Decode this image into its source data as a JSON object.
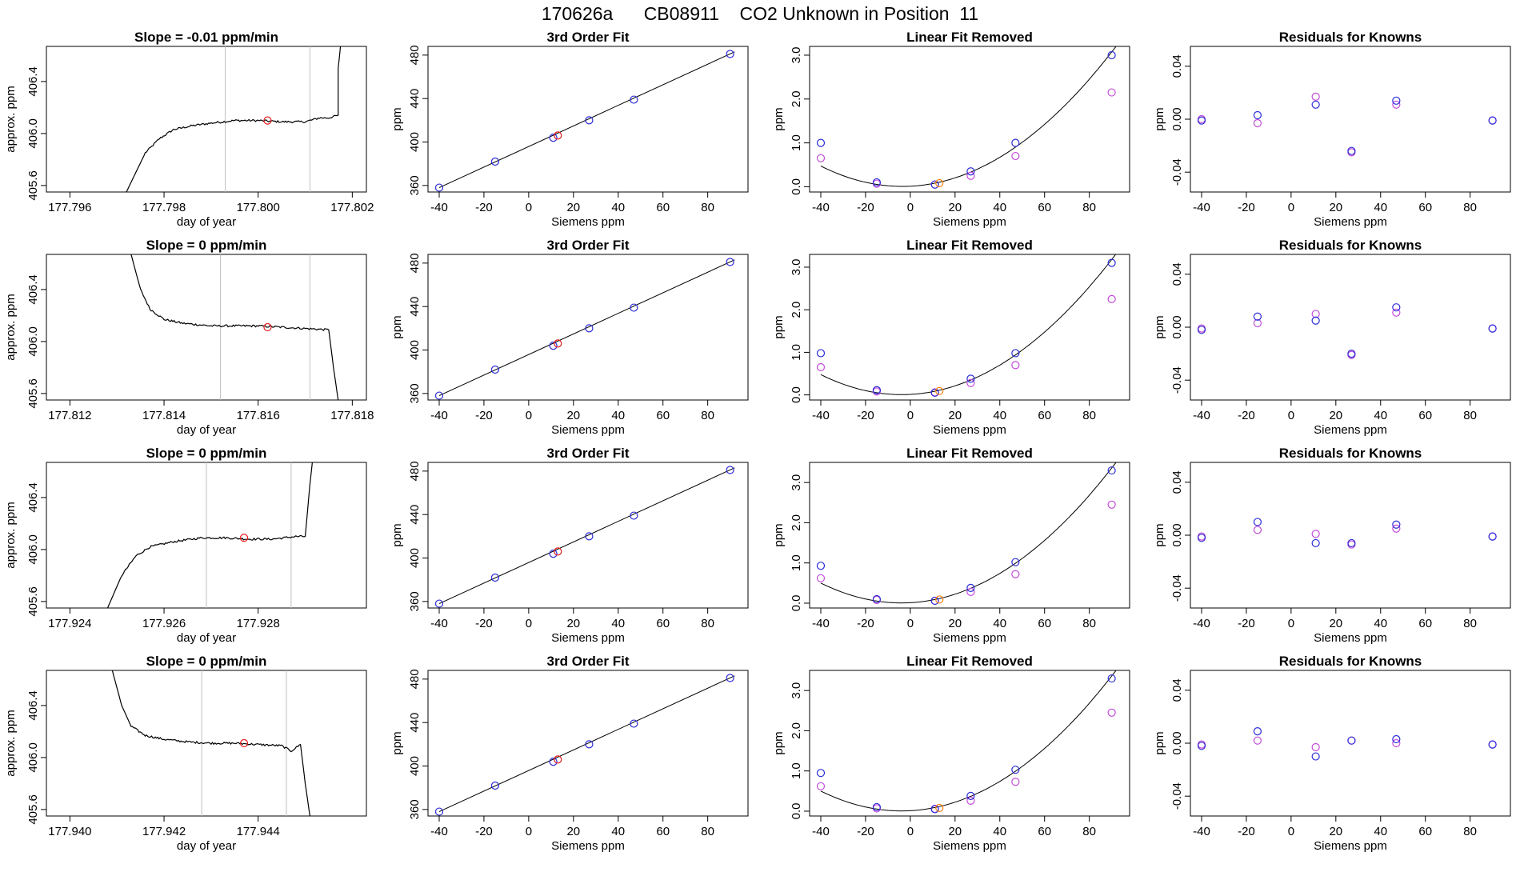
{
  "page": {
    "title": "170626a      CB08911    CO2 Unknown in Position  11"
  },
  "colors": {
    "trace": "#000000",
    "marker_red": "#e41a1c",
    "marker_blue": "#2b2bd6",
    "marker_magenta": "#c24bd8",
    "marker_orange": "#ff7f0e",
    "window_line": "#c0c0c0"
  },
  "chart_data": [
    {
      "type": "line",
      "row": 0,
      "col": 0,
      "title": "Slope =  -0.01  ppm/min",
      "xlabel": "day of year",
      "ylabel": "approx. ppm",
      "xlim": [
        177.7955,
        177.8023
      ],
      "ylim": [
        405.55,
        406.67
      ],
      "xticks": [
        177.796,
        177.798,
        177.8,
        177.802
      ],
      "xtick_labels": [
        "177.796",
        "177.798",
        "177.800",
        "177.802"
      ],
      "yticks": [
        405.6,
        406.0,
        406.4
      ],
      "ytick_labels": [
        "405.6",
        "406.0",
        "406.4"
      ],
      "window_lines": [
        177.7993,
        177.8011
      ],
      "trace": {
        "x": [
          177.7972,
          177.7976,
          177.7979,
          177.7982,
          177.7986,
          177.799,
          177.7995,
          177.8,
          177.8005,
          177.801,
          177.8013,
          177.8015,
          177.8017,
          177.8017,
          177.80175
        ],
        "y": [
          405.55,
          405.85,
          405.96,
          406.03,
          406.06,
          406.08,
          406.1,
          406.1,
          406.09,
          406.09,
          406.12,
          406.12,
          406.14,
          406.5,
          406.67
        ]
      },
      "noise": 0.008,
      "red_point": {
        "x": 177.8002,
        "y": 406.1
      }
    },
    {
      "type": "scatter",
      "row": 0,
      "col": 1,
      "title": "3rd Order Fit",
      "xlabel": "Siemens ppm",
      "ylabel": "ppm",
      "xlim": [
        -45,
        98
      ],
      "ylim": [
        354,
        488
      ],
      "xticks": [
        -40,
        -20,
        0,
        20,
        40,
        60,
        80
      ],
      "yticks": [
        360,
        400,
        440,
        480
      ],
      "fit_line": {
        "x": [
          -40,
          92
        ],
        "y": [
          358,
          483
        ]
      },
      "blue_points": {
        "x": [
          -40,
          -15,
          11,
          27,
          47,
          90
        ],
        "y": [
          358,
          382,
          404,
          420,
          439,
          481
        ]
      },
      "red_points": {
        "x": [
          13
        ],
        "y": [
          406
        ]
      }
    },
    {
      "type": "scatter",
      "row": 0,
      "col": 2,
      "title": "Linear Fit Removed",
      "xlabel": "Siemens ppm",
      "ylabel": "ppm",
      "xlim": [
        -45,
        98
      ],
      "ylim": [
        -0.12,
        3.2
      ],
      "xticks": [
        -40,
        -20,
        0,
        20,
        40,
        60,
        80
      ],
      "yticks": [
        0.0,
        1.0,
        2.0,
        3.0
      ],
      "ytick_labels": [
        "0.0",
        "1.0",
        "2.0",
        "3.0"
      ],
      "curve": {
        "a": 0.00035,
        "b": 0.0025,
        "c": 0.012
      },
      "curve_xrange": [
        -40,
        92
      ],
      "blue_points": {
        "x": [
          -40,
          -15,
          11,
          27,
          47,
          90
        ],
        "y": [
          1.0,
          0.1,
          0.05,
          0.35,
          1.0,
          3.0
        ]
      },
      "magenta_points": {
        "x": [
          -40,
          -15,
          11,
          27,
          47,
          90
        ],
        "y": [
          0.65,
          0.07,
          0.05,
          0.25,
          0.7,
          2.15
        ]
      },
      "orange_points": {
        "x": [
          13
        ],
        "y": [
          0.08
        ]
      }
    },
    {
      "type": "scatter",
      "row": 0,
      "col": 3,
      "title": "Residuals for Knowns",
      "xlabel": "Siemens ppm",
      "ylabel": "ppm",
      "xlim": [
        -45,
        98
      ],
      "ylim": [
        -0.055,
        0.055
      ],
      "xticks": [
        -40,
        -20,
        0,
        20,
        40,
        60,
        80
      ],
      "yticks": [
        -0.04,
        0.0,
        0.04
      ],
      "ytick_labels": [
        "-0.04",
        "0.00",
        "0.04"
      ],
      "blue_points": {
        "x": [
          -40,
          -15,
          11,
          27,
          47,
          90
        ],
        "y": [
          -0.001,
          0.003,
          0.011,
          -0.024,
          0.014,
          -0.001
        ]
      },
      "magenta_points": {
        "x": [
          -40,
          -15,
          11,
          27,
          47,
          90
        ],
        "y": [
          0.0,
          -0.003,
          0.017,
          -0.025,
          0.011,
          -0.001
        ]
      }
    },
    {
      "type": "line",
      "row": 1,
      "col": 0,
      "title": "Slope =  0  ppm/min",
      "xlabel": "day of year",
      "ylabel": "approx. ppm",
      "xlim": [
        177.8115,
        177.8183
      ],
      "ylim": [
        405.55,
        406.67
      ],
      "xticks": [
        177.812,
        177.814,
        177.816,
        177.818
      ],
      "xtick_labels": [
        "177.812",
        "177.814",
        "177.816",
        "177.818"
      ],
      "yticks": [
        405.6,
        406.0,
        406.4
      ],
      "ytick_labels": [
        "405.6",
        "406.0",
        "406.4"
      ],
      "window_lines": [
        177.8152,
        177.8171
      ],
      "trace": {
        "x": [
          177.8133,
          177.8135,
          177.8137,
          177.814,
          177.8144,
          177.815,
          177.8155,
          177.816,
          177.8165,
          177.817,
          177.8175,
          177.8176,
          177.8177
        ],
        "y": [
          406.67,
          406.4,
          406.25,
          406.17,
          406.14,
          406.12,
          406.12,
          406.12,
          406.11,
          406.1,
          406.09,
          405.8,
          405.55
        ]
      },
      "noise": 0.008,
      "red_point": {
        "x": 177.8162,
        "y": 406.11
      }
    },
    {
      "type": "scatter",
      "row": 1,
      "col": 1,
      "title": "3rd Order Fit",
      "xlabel": "Siemens ppm",
      "ylabel": "ppm",
      "xlim": [
        -45,
        98
      ],
      "ylim": [
        354,
        488
      ],
      "xticks": [
        -40,
        -20,
        0,
        20,
        40,
        60,
        80
      ],
      "yticks": [
        360,
        400,
        440,
        480
      ],
      "fit_line": {
        "x": [
          -40,
          92
        ],
        "y": [
          358,
          483
        ]
      },
      "blue_points": {
        "x": [
          -40,
          -15,
          11,
          27,
          47,
          90
        ],
        "y": [
          358,
          382,
          404,
          420,
          439,
          481
        ]
      },
      "red_points": {
        "x": [
          13
        ],
        "y": [
          406
        ]
      }
    },
    {
      "type": "scatter",
      "row": 1,
      "col": 2,
      "title": "Linear Fit Removed",
      "xlabel": "Siemens ppm",
      "ylabel": "ppm",
      "xlim": [
        -45,
        98
      ],
      "ylim": [
        -0.12,
        3.3
      ],
      "xticks": [
        -40,
        -20,
        0,
        20,
        40,
        60,
        80
      ],
      "yticks": [
        0.0,
        1.0,
        2.0,
        3.0
      ],
      "ytick_labels": [
        "0.0",
        "1.0",
        "2.0",
        "3.0"
      ],
      "curve": {
        "a": 0.00036,
        "b": 0.0028,
        "c": 0.012
      },
      "curve_xrange": [
        -40,
        92
      ],
      "blue_points": {
        "x": [
          -40,
          -15,
          11,
          27,
          47,
          90
        ],
        "y": [
          0.98,
          0.11,
          0.05,
          0.38,
          0.98,
          3.1
        ]
      },
      "magenta_points": {
        "x": [
          -40,
          -15,
          11,
          27,
          47,
          90
        ],
        "y": [
          0.65,
          0.08,
          0.06,
          0.28,
          0.7,
          2.25
        ]
      },
      "orange_points": {
        "x": [
          13
        ],
        "y": [
          0.09
        ]
      }
    },
    {
      "type": "scatter",
      "row": 1,
      "col": 3,
      "title": "Residuals for Knowns",
      "xlabel": "Siemens ppm",
      "ylabel": "ppm",
      "xlim": [
        -45,
        98
      ],
      "ylim": [
        -0.055,
        0.055
      ],
      "xticks": [
        -40,
        -20,
        0,
        20,
        40,
        60,
        80
      ],
      "yticks": [
        -0.04,
        0.0,
        0.04
      ],
      "ytick_labels": [
        "-0.04",
        "0.00",
        "0.04"
      ],
      "blue_points": {
        "x": [
          -40,
          -15,
          11,
          27,
          47,
          90
        ],
        "y": [
          -0.002,
          0.008,
          0.005,
          -0.02,
          0.015,
          -0.001
        ]
      },
      "magenta_points": {
        "x": [
          -40,
          -15,
          11,
          27,
          47,
          90
        ],
        "y": [
          -0.001,
          0.003,
          0.01,
          -0.021,
          0.011,
          -0.001
        ]
      }
    },
    {
      "type": "line",
      "row": 2,
      "col": 0,
      "title": "Slope =  0  ppm/min",
      "xlabel": "day of year",
      "ylabel": "approx. ppm",
      "xlim": [
        177.9235,
        177.9303
      ],
      "ylim": [
        405.55,
        406.67
      ],
      "xticks": [
        177.924,
        177.926,
        177.928
      ],
      "xtick_labels": [
        "177.924",
        "177.926",
        "177.928"
      ],
      "yticks": [
        405.6,
        406.0,
        406.4
      ],
      "ytick_labels": [
        "405.6",
        "406.0",
        "406.4"
      ],
      "window_lines": [
        177.9269,
        177.9287
      ],
      "trace": {
        "x": [
          177.9248,
          177.9251,
          177.9254,
          177.9257,
          177.9262,
          177.9268,
          177.9273,
          177.9278,
          177.9283,
          177.9288,
          177.929,
          177.9291,
          177.92915
        ],
        "y": [
          405.55,
          405.8,
          405.95,
          406.02,
          406.06,
          406.09,
          406.09,
          406.08,
          406.08,
          406.1,
          406.1,
          406.5,
          406.67
        ]
      },
      "noise": 0.008,
      "red_point": {
        "x": 177.9277,
        "y": 406.09
      }
    },
    {
      "type": "scatter",
      "row": 2,
      "col": 1,
      "title": "3rd Order Fit",
      "xlabel": "Siemens ppm",
      "ylabel": "ppm",
      "xlim": [
        -45,
        98
      ],
      "ylim": [
        354,
        488
      ],
      "xticks": [
        -40,
        -20,
        0,
        20,
        40,
        60,
        80
      ],
      "yticks": [
        360,
        400,
        440,
        480
      ],
      "fit_line": {
        "x": [
          -40,
          92
        ],
        "y": [
          358,
          483
        ]
      },
      "blue_points": {
        "x": [
          -40,
          -15,
          11,
          27,
          47,
          90
        ],
        "y": [
          358,
          382,
          404,
          420,
          439,
          481
        ]
      },
      "red_points": {
        "x": [
          13
        ],
        "y": [
          406
        ]
      }
    },
    {
      "type": "scatter",
      "row": 2,
      "col": 2,
      "title": "Linear Fit Removed",
      "xlabel": "Siemens ppm",
      "ylabel": "ppm",
      "xlim": [
        -45,
        98
      ],
      "ylim": [
        -0.12,
        3.5
      ],
      "xticks": [
        -40,
        -20,
        0,
        20,
        40,
        60,
        80
      ],
      "yticks": [
        0.0,
        1.0,
        2.0,
        3.0
      ],
      "ytick_labels": [
        "0.0",
        "1.0",
        "2.0",
        "3.0"
      ],
      "curve": {
        "a": 0.00038,
        "b": 0.003,
        "c": 0.012
      },
      "curve_xrange": [
        -40,
        92
      ],
      "blue_points": {
        "x": [
          -40,
          -15,
          11,
          27,
          47,
          90
        ],
        "y": [
          0.93,
          0.1,
          0.06,
          0.38,
          1.02,
          3.3
        ]
      },
      "magenta_points": {
        "x": [
          -40,
          -15,
          11,
          27,
          47,
          90
        ],
        "y": [
          0.62,
          0.08,
          0.06,
          0.28,
          0.72,
          2.45
        ]
      },
      "orange_points": {
        "x": [
          13
        ],
        "y": [
          0.09
        ]
      }
    },
    {
      "type": "scatter",
      "row": 2,
      "col": 3,
      "title": "Residuals for Knowns",
      "xlabel": "Siemens ppm",
      "ylabel": "ppm",
      "xlim": [
        -45,
        98
      ],
      "ylim": [
        -0.055,
        0.055
      ],
      "xticks": [
        -40,
        -20,
        0,
        20,
        40,
        60,
        80
      ],
      "yticks": [
        -0.04,
        0.0,
        0.04
      ],
      "ytick_labels": [
        "-0.04",
        "0.00",
        "0.04"
      ],
      "blue_points": {
        "x": [
          -40,
          -15,
          11,
          27,
          47,
          90
        ],
        "y": [
          -0.002,
          0.01,
          -0.006,
          -0.006,
          0.008,
          -0.001
        ]
      },
      "magenta_points": {
        "x": [
          -40,
          -15,
          11,
          27,
          47,
          90
        ],
        "y": [
          -0.001,
          0.004,
          0.001,
          -0.007,
          0.005,
          -0.001
        ]
      }
    },
    {
      "type": "line",
      "row": 3,
      "col": 0,
      "title": "Slope =  0  ppm/min",
      "xlabel": "day of year",
      "ylabel": "approx. ppm",
      "xlim": [
        177.9395,
        177.9463
      ],
      "ylim": [
        405.55,
        406.67
      ],
      "xticks": [
        177.94,
        177.942,
        177.944
      ],
      "xtick_labels": [
        "177.940",
        "177.942",
        "177.944"
      ],
      "yticks": [
        405.6,
        406.0,
        406.4
      ],
      "ytick_labels": [
        "405.6",
        "406.0",
        "406.4"
      ],
      "window_lines": [
        177.9428,
        177.9446
      ],
      "trace": {
        "x": [
          177.9409,
          177.9411,
          177.9413,
          177.9416,
          177.942,
          177.9425,
          177.943,
          177.9435,
          177.944,
          177.9445,
          177.9447,
          177.9449,
          177.945,
          177.9451
        ],
        "y": [
          406.67,
          406.4,
          406.24,
          406.17,
          406.14,
          406.12,
          406.11,
          406.11,
          406.1,
          406.09,
          406.05,
          406.1,
          405.8,
          405.55
        ]
      },
      "noise": 0.008,
      "red_point": {
        "x": 177.9437,
        "y": 406.11
      }
    },
    {
      "type": "scatter",
      "row": 3,
      "col": 1,
      "title": "3rd Order Fit",
      "xlabel": "Siemens ppm",
      "ylabel": "ppm",
      "xlim": [
        -45,
        98
      ],
      "ylim": [
        354,
        488
      ],
      "xticks": [
        -40,
        -20,
        0,
        20,
        40,
        60,
        80
      ],
      "yticks": [
        360,
        400,
        440,
        480
      ],
      "fit_line": {
        "x": [
          -40,
          92
        ],
        "y": [
          358,
          483
        ]
      },
      "blue_points": {
        "x": [
          -40,
          -15,
          11,
          27,
          47,
          90
        ],
        "y": [
          358,
          382,
          404,
          420,
          439,
          481
        ]
      },
      "red_points": {
        "x": [
          13
        ],
        "y": [
          406
        ]
      }
    },
    {
      "type": "scatter",
      "row": 3,
      "col": 2,
      "title": "Linear Fit Removed",
      "xlabel": "Siemens ppm",
      "ylabel": "ppm",
      "xlim": [
        -45,
        98
      ],
      "ylim": [
        -0.12,
        3.5
      ],
      "xticks": [
        -40,
        -20,
        0,
        20,
        40,
        60,
        80
      ],
      "yticks": [
        0.0,
        1.0,
        2.0,
        3.0
      ],
      "ytick_labels": [
        "0.0",
        "1.0",
        "2.0",
        "3.0"
      ],
      "curve": {
        "a": 0.00038,
        "b": 0.003,
        "c": 0.012
      },
      "curve_xrange": [
        -40,
        92
      ],
      "blue_points": {
        "x": [
          -40,
          -15,
          11,
          27,
          47,
          90
        ],
        "y": [
          0.95,
          0.1,
          0.05,
          0.38,
          1.03,
          3.3
        ]
      },
      "magenta_points": {
        "x": [
          -40,
          -15,
          11,
          27,
          47,
          90
        ],
        "y": [
          0.62,
          0.07,
          0.06,
          0.26,
          0.73,
          2.45
        ]
      },
      "orange_points": {
        "x": [
          13
        ],
        "y": [
          0.08
        ]
      }
    },
    {
      "type": "scatter",
      "row": 3,
      "col": 3,
      "title": "Residuals for Knowns",
      "xlabel": "Siemens ppm",
      "ylabel": "ppm",
      "xlim": [
        -45,
        98
      ],
      "ylim": [
        -0.055,
        0.055
      ],
      "xticks": [
        -40,
        -20,
        0,
        20,
        40,
        60,
        80
      ],
      "yticks": [
        -0.04,
        0.0,
        0.04
      ],
      "ytick_labels": [
        "-0.04",
        "0.00",
        "0.04"
      ],
      "blue_points": {
        "x": [
          -40,
          -15,
          11,
          27,
          47,
          90
        ],
        "y": [
          -0.002,
          0.009,
          -0.01,
          0.002,
          0.003,
          -0.001
        ]
      },
      "magenta_points": {
        "x": [
          -40,
          -15,
          11,
          27,
          47,
          90
        ],
        "y": [
          -0.001,
          0.002,
          -0.003,
          0.002,
          0.0,
          -0.001
        ]
      }
    }
  ]
}
